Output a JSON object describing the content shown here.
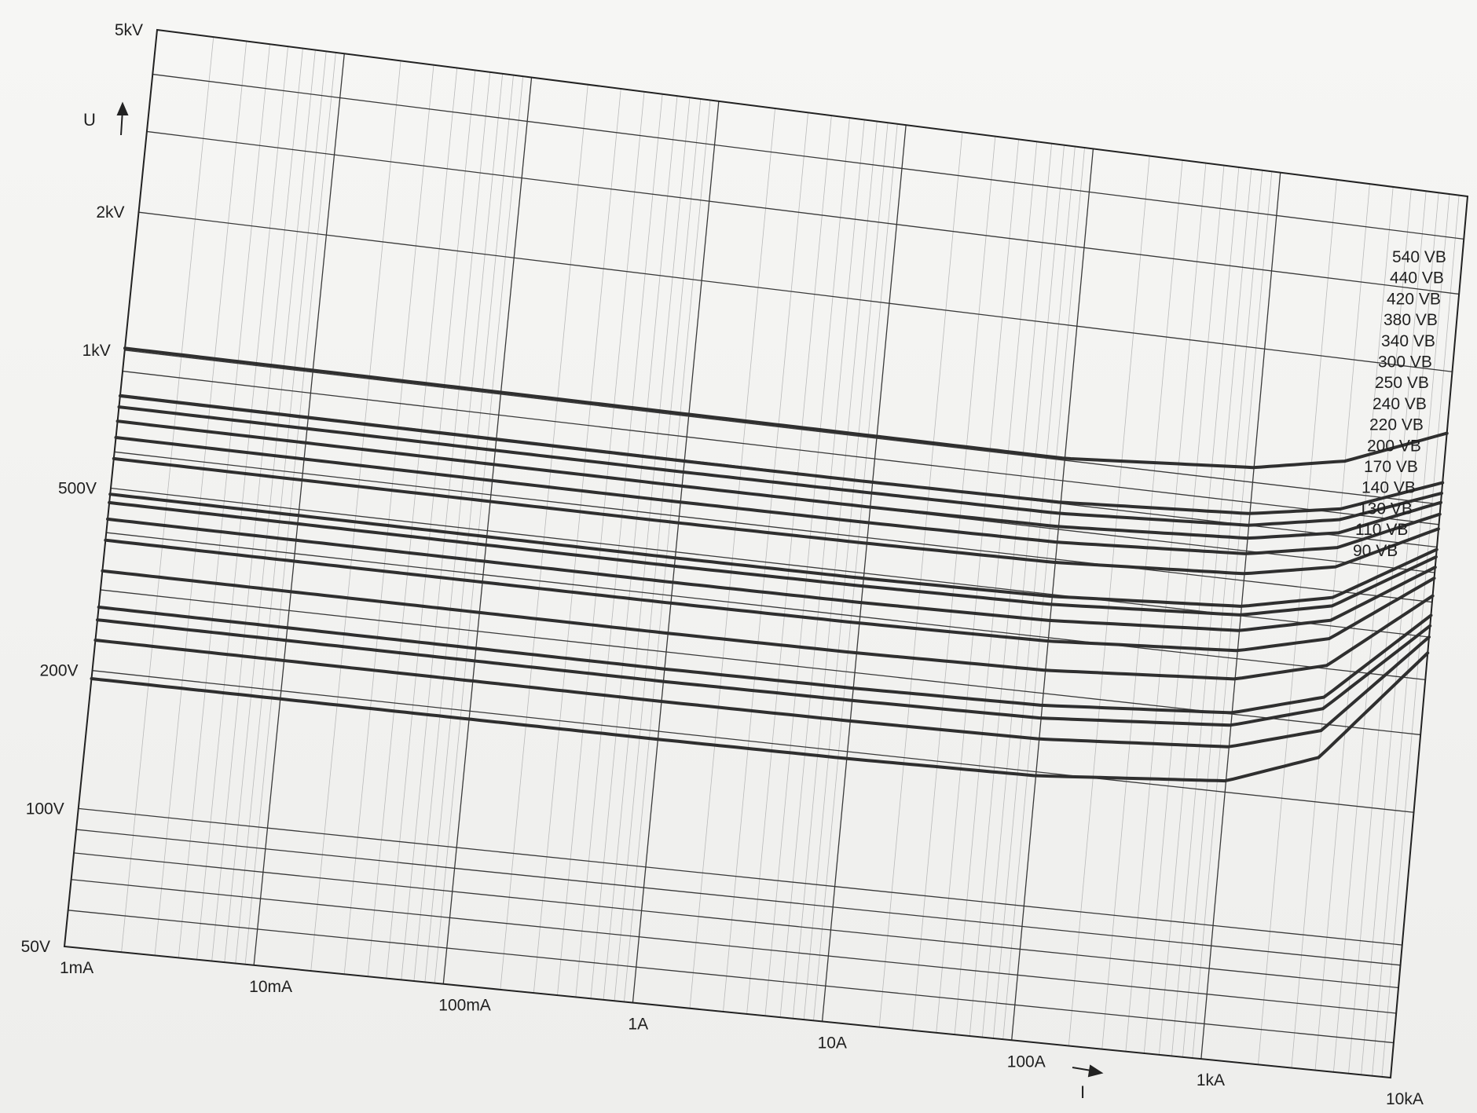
{
  "chart_data": {
    "type": "line",
    "xlabel": "I",
    "ylabel": "U",
    "x_scale": "log",
    "y_scale": "log",
    "xlim_A": [
      0.001,
      10000
    ],
    "ylim_V": [
      50,
      5000
    ],
    "grid": true,
    "legend": "none",
    "x_ticks": [
      {
        "label": "1mA",
        "value": 0.001
      },
      {
        "label": "10mA",
        "value": 0.01
      },
      {
        "label": "100mA",
        "value": 0.1
      },
      {
        "label": "1A",
        "value": 1
      },
      {
        "label": "10A",
        "value": 10
      },
      {
        "label": "100A",
        "value": 100
      },
      {
        "label": "1kA",
        "value": 1000
      },
      {
        "label": "10kA",
        "value": 10000
      }
    ],
    "y_ticks": [
      {
        "label": "5kV",
        "value": 5000
      },
      {
        "label": "2kV",
        "value": 2000
      },
      {
        "label": "1kV",
        "value": 1000
      },
      {
        "label": "500V",
        "value": 500
      },
      {
        "label": "200V",
        "value": 200
      },
      {
        "label": "100V",
        "value": 100
      },
      {
        "label": "50V",
        "value": 50
      }
    ],
    "x": [
      0.001,
      0.01,
      0.1,
      1,
      10,
      100,
      1000,
      3000,
      10000
    ],
    "series": [
      {
        "name": "540 VB",
        "values": [
          1010,
          1010,
          1010,
          1010,
          1010,
          1010,
          1080,
          1180,
          1450
        ]
      },
      {
        "name": "440 VB",
        "values": [
          795,
          795,
          795,
          795,
          798,
          805,
          850,
          920,
          1120
        ]
      },
      {
        "name": "420 VB",
        "values": [
          752,
          752,
          752,
          752,
          755,
          760,
          800,
          870,
          1060
        ]
      },
      {
        "name": "380 VB",
        "values": [
          700,
          700,
          700,
          700,
          702,
          710,
          748,
          812,
          1010
        ]
      },
      {
        "name": "340 VB",
        "values": [
          645,
          645,
          645,
          645,
          648,
          655,
          690,
          752,
          950
        ]
      },
      {
        "name": "300 VB",
        "values": [
          580,
          580,
          580,
          580,
          583,
          590,
          622,
          680,
          880
        ]
      },
      {
        "name": "250 VB",
        "values": [
          485,
          485,
          485,
          485,
          487,
          495,
          525,
          580,
          790
        ]
      },
      {
        "name": "240 VB",
        "values": [
          465,
          465,
          465,
          465,
          468,
          475,
          502,
          555,
          760
        ]
      },
      {
        "name": "220 VB",
        "values": [
          428,
          428,
          428,
          428,
          430,
          437,
          463,
          515,
          720
        ]
      },
      {
        "name": "200 VB",
        "values": [
          385,
          385,
          385,
          385,
          387,
          393,
          417,
          468,
          680
        ]
      },
      {
        "name": "170 VB",
        "values": [
          330,
          330,
          330,
          330,
          332,
          338,
          360,
          407,
          620
        ]
      },
      {
        "name": "140 VB",
        "values": [
          275,
          275,
          275,
          275,
          277,
          282,
          302,
          345,
          560
        ]
      },
      {
        "name": "130 VB",
        "values": [
          258,
          258,
          258,
          258,
          260,
          264,
          283,
          325,
          530
        ]
      },
      {
        "name": "110 VB",
        "values": [
          233,
          233,
          233,
          233,
          234,
          237,
          253,
          290,
          500
        ]
      },
      {
        "name": "90 VB",
        "values": [
          192,
          192,
          192,
          192,
          193,
          196,
          212,
          252,
          460
        ]
      }
    ]
  }
}
